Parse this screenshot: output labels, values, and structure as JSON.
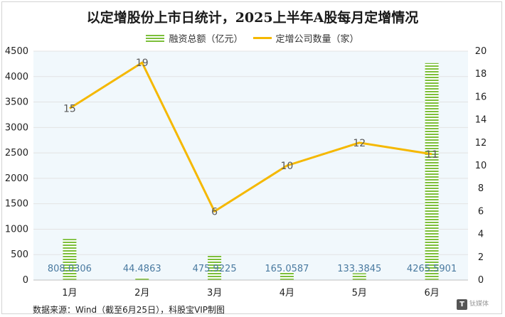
{
  "title": "以定增股份上市日统计，2025上半年A股每月定增情况",
  "source": "数据来源：Wind（截至6月25日），科股宝VIP制图",
  "watermark": {
    "glyph": "T",
    "text": "钛媒体"
  },
  "colors": {
    "bar": "#7cbf3a",
    "line": "#f5b800",
    "plot_bg": "#f1f8fc",
    "grid": "#e3e3e3"
  },
  "chart_data": {
    "type": "bar+line",
    "categories": [
      "1月",
      "2月",
      "3月",
      "4月",
      "5月",
      "6月"
    ],
    "series": [
      {
        "name": "融资总额（亿元）",
        "type": "bar",
        "axis": "left",
        "values": [
          808.0306,
          44.4863,
          475.9225,
          165.0587,
          133.3845,
          4265.5901
        ],
        "labels": [
          "808.0306",
          "44.4863",
          "475.9225",
          "165.0587",
          "133.3845",
          "4265.5901"
        ]
      },
      {
        "name": "定增公司数量（家）",
        "type": "line",
        "axis": "right",
        "values": [
          15,
          19,
          6,
          10,
          12,
          11
        ],
        "labels": [
          "15",
          "19",
          "6",
          "10",
          "12",
          "11"
        ]
      }
    ],
    "y_left": {
      "min": 0,
      "max": 4500,
      "step": 500
    },
    "y_right": {
      "min": 0,
      "max": 20,
      "step": 2
    },
    "legend": "top-center"
  }
}
